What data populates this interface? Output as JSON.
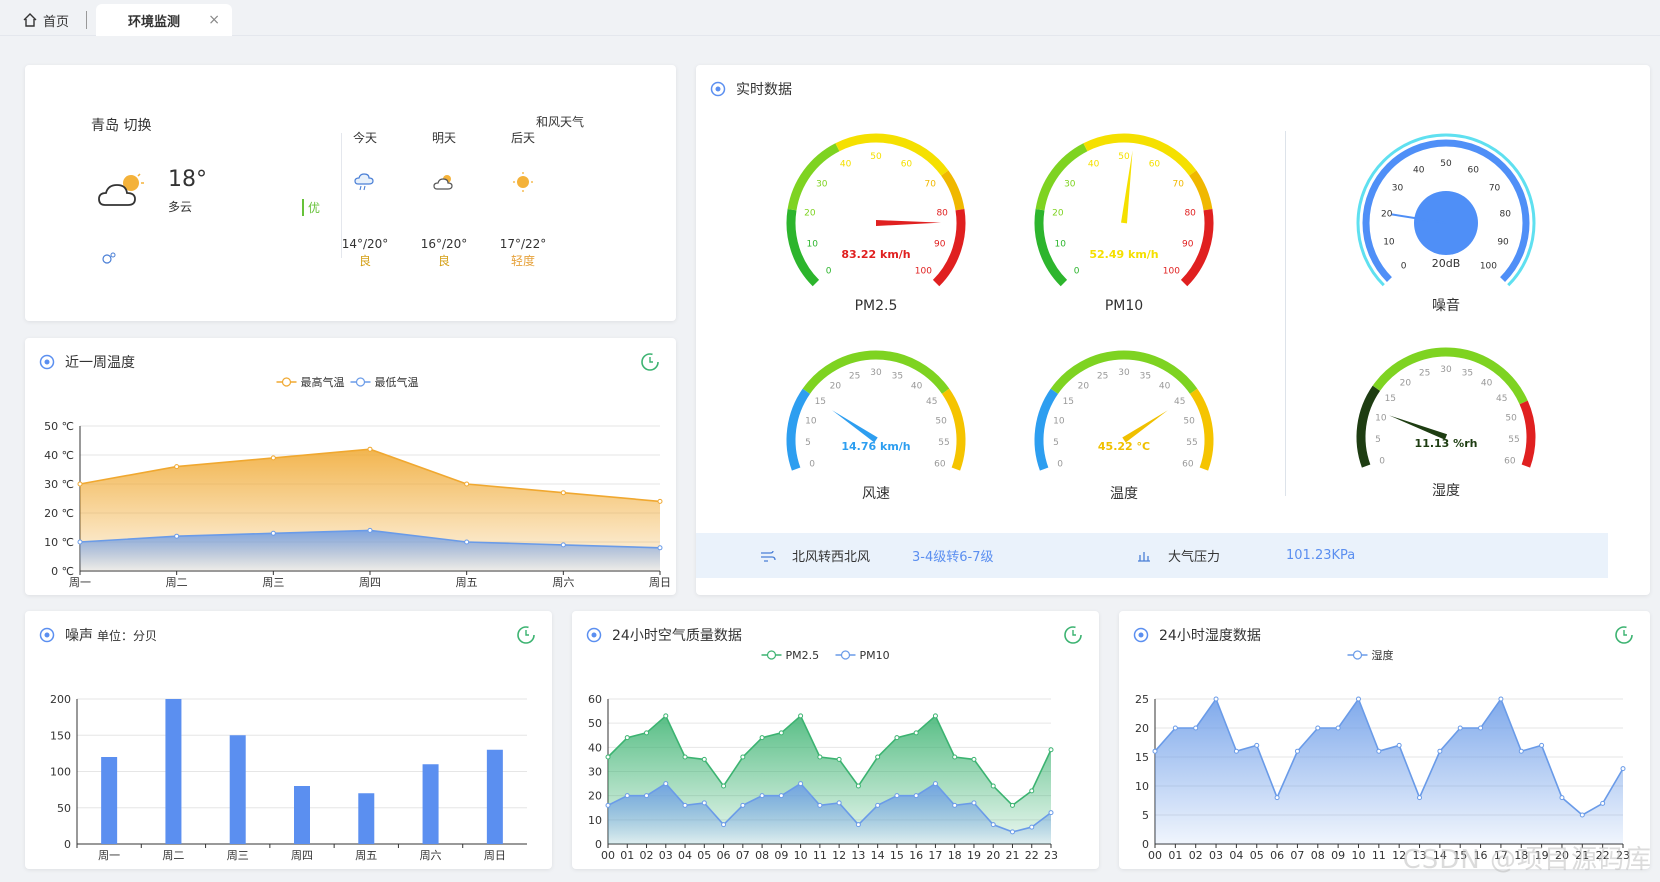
{
  "tabs": {
    "home": "首页",
    "active": "环境监测",
    "close": "×"
  },
  "weather": {
    "city": "青岛",
    "switch": "切换",
    "temp": "18°",
    "desc": "多云",
    "aqi": "优",
    "provider": "和风天气",
    "forecast": [
      {
        "day": "今天",
        "range": "14°/20°",
        "quality": "良",
        "icon": "rain-cloud-icon"
      },
      {
        "day": "明天",
        "range": "16°/20°",
        "quality": "良",
        "icon": "partly-cloudy-icon"
      },
      {
        "day": "后天",
        "range": "17°/22°",
        "quality": "轻度",
        "icon": "sun-icon"
      }
    ]
  },
  "realtime": {
    "title": "实时数据",
    "gauges": {
      "pm25": {
        "label": "PM2.5",
        "value": 83.22,
        "unit": "km/h",
        "min": 0,
        "max": 100,
        "ticks": [
          0,
          10,
          20,
          30,
          40,
          50,
          60,
          70,
          80,
          90,
          100
        ],
        "readout": "83.22 km/h",
        "color": "#e02020"
      },
      "pm10": {
        "label": "PM10",
        "value": 52.49,
        "unit": "km/h",
        "min": 0,
        "max": 100,
        "ticks": [
          0,
          10,
          20,
          30,
          40,
          50,
          60,
          70,
          80,
          90,
          100
        ],
        "readout": "52.49 km/h",
        "color": "#f5e000"
      },
      "noise": {
        "label": "噪音",
        "value": 20,
        "unit": "dB",
        "min": 0,
        "max": 100,
        "ticks": [
          0,
          10,
          20,
          30,
          40,
          50,
          60,
          70,
          80,
          90,
          100
        ],
        "readout": "20dB",
        "color": "#4f8ff7"
      },
      "wind": {
        "label": "风速",
        "value": 14.76,
        "unit": "km/h",
        "min": 0,
        "max": 60,
        "ticks": [
          0,
          5,
          10,
          15,
          20,
          25,
          30,
          35,
          40,
          45,
          50,
          55,
          60
        ],
        "readout": "14.76 km/h",
        "color": "#2d9ef0"
      },
      "temp": {
        "label": "温度",
        "value": 45.22,
        "unit": "°C",
        "min": 0,
        "max": 60,
        "ticks": [
          0,
          5,
          10,
          15,
          20,
          25,
          30,
          35,
          40,
          45,
          50,
          55,
          60
        ],
        "readout": "45.22 °C",
        "color": "#f0c000"
      },
      "humidity": {
        "label": "湿度",
        "value": 11.13,
        "unit": "%rh",
        "min": 0,
        "max": 60,
        "ticks": [
          0,
          5,
          10,
          15,
          20,
          25,
          30,
          35,
          40,
          45,
          50,
          55,
          60
        ],
        "readout": "11.13 %rh",
        "color": "#1e3d12"
      }
    },
    "wind_dir_label": "北风转西北风",
    "wind_level": "3-4级转6-7级",
    "pressure_label": "大气压力",
    "pressure_value": "101.23KPa"
  },
  "panels": {
    "week_temp": {
      "title": "近一周温度",
      "legend_high": "最高气温",
      "legend_low": "最低气温"
    },
    "noise": {
      "title": "噪声",
      "unit": "单位：分贝"
    },
    "air": {
      "title": "24小时空气质量数据",
      "legend": [
        "PM2.5",
        "PM10"
      ]
    },
    "humidity": {
      "title": "24小时湿度数据",
      "legend": [
        "湿度"
      ]
    }
  },
  "watermark": "CSDN @项目源码库",
  "chart_data": [
    {
      "type": "area",
      "title": "近一周温度",
      "categories": [
        "周一",
        "周二",
        "周三",
        "周四",
        "周五",
        "周六",
        "周日"
      ],
      "series": [
        {
          "name": "最高气温",
          "values": [
            30,
            36,
            39,
            42,
            30,
            27,
            24
          ],
          "color": "#f0a830"
        },
        {
          "name": "最低气温",
          "values": [
            10,
            12,
            13,
            14,
            10,
            9,
            8
          ],
          "color": "#6a9be8"
        }
      ],
      "ylim": [
        0,
        50
      ],
      "yticks": [
        0,
        10,
        20,
        30,
        40,
        50
      ],
      "yunit": "℃",
      "legend": "top-center"
    },
    {
      "type": "bar",
      "title": "噪声",
      "categories": [
        "周一",
        "周二",
        "周三",
        "周四",
        "周五",
        "周六",
        "周日"
      ],
      "values": [
        120,
        200,
        150,
        80,
        70,
        110,
        130
      ],
      "ylim": [
        0,
        200
      ],
      "yticks": [
        0,
        50,
        100,
        150,
        200
      ],
      "color": "#5b8ff0"
    },
    {
      "type": "area",
      "title": "24小时空气质量数据",
      "categories": [
        "00",
        "01",
        "02",
        "03",
        "04",
        "05",
        "06",
        "07",
        "08",
        "09",
        "10",
        "11",
        "12",
        "13",
        "14",
        "15",
        "16",
        "17",
        "18",
        "19",
        "20",
        "21",
        "22",
        "23"
      ],
      "series": [
        {
          "name": "PM2.5",
          "values": [
            36,
            44,
            46,
            53,
            36,
            35,
            24,
            36,
            44,
            46,
            53,
            36,
            35,
            24,
            36,
            44,
            46,
            53,
            36,
            35,
            24,
            16,
            22,
            39
          ],
          "color": "#3cb371"
        },
        {
          "name": "PM10",
          "values": [
            16,
            20,
            20,
            25,
            16,
            17,
            8,
            16,
            20,
            20,
            25,
            16,
            17,
            8,
            16,
            20,
            20,
            25,
            16,
            17,
            8,
            5,
            7,
            13
          ],
          "color": "#6a9be8"
        }
      ],
      "ylim": [
        0,
        60
      ],
      "yticks": [
        0,
        10,
        20,
        30,
        40,
        50,
        60
      ],
      "legend": "top-center"
    },
    {
      "type": "area",
      "title": "24小时湿度数据",
      "categories": [
        "00",
        "01",
        "02",
        "03",
        "04",
        "05",
        "06",
        "07",
        "08",
        "09",
        "10",
        "11",
        "12",
        "13",
        "14",
        "15",
        "16",
        "17",
        "18",
        "19",
        "20",
        "21",
        "22",
        "23"
      ],
      "series": [
        {
          "name": "湿度",
          "values": [
            16,
            20,
            20,
            25,
            16,
            17,
            8,
            16,
            20,
            20,
            25,
            16,
            17,
            8,
            16,
            20,
            20,
            25,
            16,
            17,
            8,
            5,
            7,
            13
          ],
          "color": "#6a9be8"
        }
      ],
      "ylim": [
        0,
        25
      ],
      "yticks": [
        0,
        5,
        10,
        15,
        20,
        25
      ],
      "legend": "top-center"
    }
  ]
}
